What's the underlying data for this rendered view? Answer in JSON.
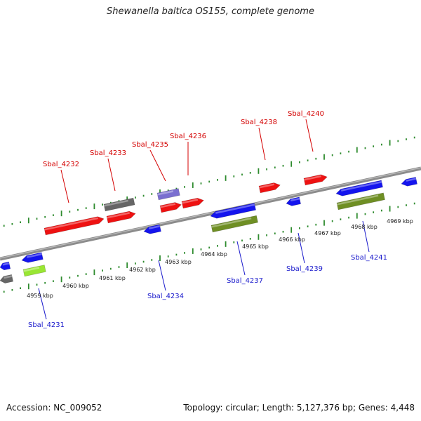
{
  "title": "Shewanella baltica OS155, complete genome",
  "footer": {
    "accession_label": "Accession: NC_009052",
    "summary": "Topology: circular; Length: 5,127,376 bp; Genes: 4,448"
  },
  "colors": {
    "forward_label": "#d40000",
    "reverse_label": "#1a1acc",
    "red_gene": "#ee1111",
    "blue_gene": "#1414ee",
    "gray_gene": "#666666",
    "purple_gene": "#7a6fd0",
    "olive_gene": "#6f8f24",
    "lime_gene": "#99e633",
    "tick_color": "#2e8b2e",
    "backbone": "#8c8c8c"
  },
  "axis_labels": [
    "4959 kbp",
    "4960 kbp",
    "4961 kbp",
    "4962 kbp",
    "4963 kbp",
    "4964 kbp",
    "4965 kbp",
    "4966 kbp",
    "4967 kbp",
    "4968 kbp",
    "4969 kbp"
  ],
  "gene_labels": {
    "top": [
      "Sbal_4232",
      "Sbal_4233",
      "Sbal_4235",
      "Sbal_4236",
      "Sbal_4238",
      "Sbal_4240"
    ],
    "bottom": [
      "Sbal_4231",
      "Sbal_4234",
      "Sbal_4237",
      "Sbal_4239",
      "Sbal_4241"
    ]
  }
}
